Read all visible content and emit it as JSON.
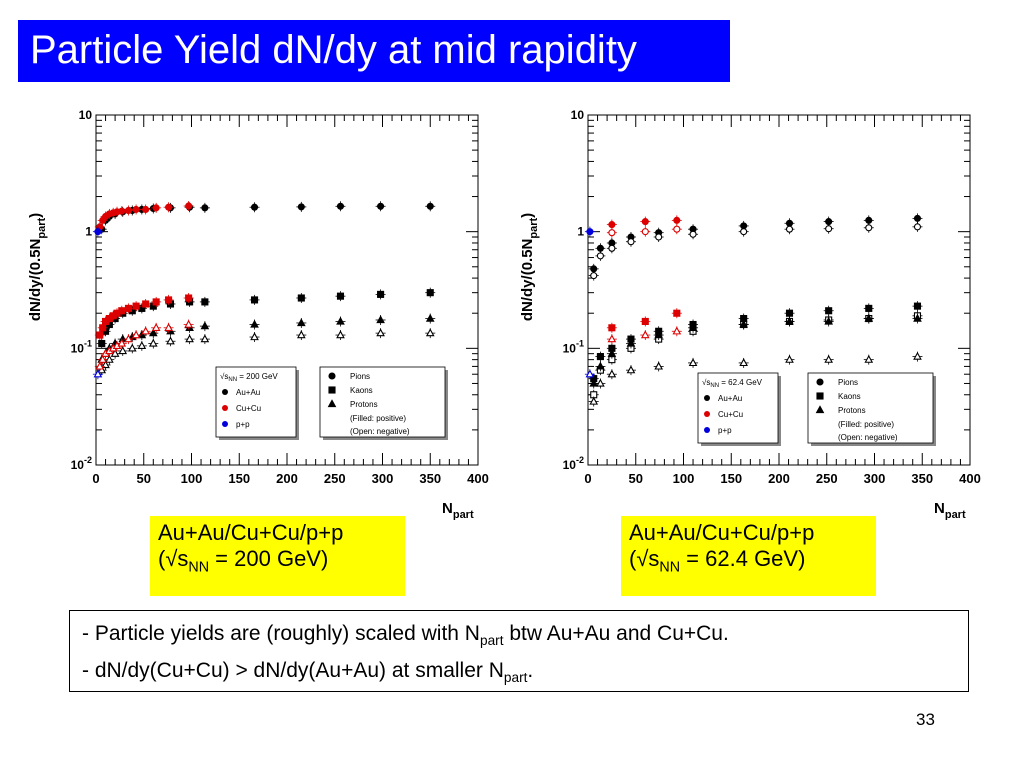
{
  "slide": {
    "title": "Particle Yield dN/dy at mid rapidity",
    "page_number": "33"
  },
  "captions": [
    {
      "line1": "Au+Au/Cu+Cu/p+p",
      "line2_pre": "(√s",
      "line2_sub": "NN",
      "line2_post": " = 200 GeV)"
    },
    {
      "line1": "Au+Au/Cu+Cu/p+p",
      "line2_pre": "(√s",
      "line2_sub": "NN",
      "line2_post": " = 62.4 GeV)"
    }
  ],
  "notes": {
    "line1_pre": "- Particle yields are (roughly) scaled with N",
    "line1_sub": "part",
    "line1_post": " btw Au+Au and Cu+Cu.",
    "line2_pre": "- dN/dy(Cu+Cu) > dN/dy(Au+Au) at smaller N",
    "line2_sub": "part",
    "line2_post": "."
  },
  "legend_common": {
    "au_label": "Au+Au",
    "cu_label": "Cu+Cu",
    "pp_label": "p+p",
    "pions": "Pions",
    "kaons": "Kaons",
    "protons": "Protons",
    "filled": "(Filled: positive)",
    "open": "(Open: negative)"
  },
  "colors": {
    "au": "#000000",
    "cu": "#dd0000",
    "pp": "#0000dd",
    "title_bg": "#0000ff",
    "caption_bg": "#ffff00"
  },
  "chart_data": [
    {
      "type": "scatter",
      "energy_label": "= 200 GeV",
      "xlabel_main": "N",
      "xlabel_sub": "part",
      "ylabel_main": "dN/dy/(0.5N",
      "ylabel_sub": "part",
      "ylabel_end": ")",
      "xlim": [
        0,
        400
      ],
      "ylim": [
        0.01,
        10
      ],
      "yscale": "log",
      "x_ticks": [
        "0",
        "50",
        "100",
        "150",
        "200",
        "250",
        "300",
        "350",
        "400"
      ],
      "y_ticks": [
        {
          "base": "10",
          "exp": "-2"
        },
        {
          "base": "10",
          "exp": "-1"
        },
        {
          "base": "1",
          "exp": ""
        },
        {
          "base": "10",
          "exp": ""
        }
      ],
      "series": [
        {
          "name": "Pions",
          "system": "Au+Au",
          "filled": true,
          "marker": "circle",
          "x": [
            6,
            10,
            14,
            20,
            28,
            38,
            48,
            60,
            78,
            98,
            114,
            166,
            215,
            256,
            298,
            350
          ],
          "y": [
            1.05,
            1.25,
            1.35,
            1.42,
            1.48,
            1.52,
            1.55,
            1.58,
            1.6,
            1.62,
            1.6,
            1.62,
            1.63,
            1.65,
            1.65,
            1.65
          ]
        },
        {
          "name": "Pions",
          "system": "Cu+Cu",
          "filled": true,
          "marker": "circle",
          "x": [
            4,
            7,
            10,
            14,
            18,
            22,
            27,
            34,
            42,
            52,
            63,
            76,
            97
          ],
          "y": [
            1.1,
            1.25,
            1.35,
            1.42,
            1.45,
            1.48,
            1.5,
            1.52,
            1.55,
            1.55,
            1.6,
            1.62,
            1.66
          ]
        },
        {
          "name": "Pions",
          "system": "p+p",
          "filled": true,
          "marker": "circle",
          "x": [
            2
          ],
          "y": [
            1.0
          ]
        },
        {
          "name": "Kaons",
          "system": "Au+Au",
          "filled": true,
          "marker": "square",
          "x": [
            6,
            10,
            14,
            20,
            28,
            38,
            48,
            60,
            78,
            98,
            114,
            166,
            215,
            256,
            298,
            350
          ],
          "y": [
            0.11,
            0.14,
            0.16,
            0.18,
            0.2,
            0.21,
            0.22,
            0.23,
            0.24,
            0.25,
            0.25,
            0.26,
            0.27,
            0.28,
            0.29,
            0.3
          ]
        },
        {
          "name": "Kaons",
          "system": "Cu+Cu",
          "filled": true,
          "marker": "square",
          "x": [
            4,
            7,
            10,
            14,
            18,
            22,
            27,
            34,
            42,
            52,
            63,
            76,
            97
          ],
          "y": [
            0.13,
            0.15,
            0.17,
            0.18,
            0.19,
            0.2,
            0.21,
            0.22,
            0.23,
            0.24,
            0.25,
            0.26,
            0.27
          ]
        },
        {
          "name": "Protons",
          "system": "Au+Au",
          "filled": true,
          "marker": "triangle",
          "x": [
            6,
            10,
            14,
            20,
            28,
            38,
            48,
            60,
            78,
            98,
            114,
            166,
            215,
            256,
            298,
            350
          ],
          "y": [
            0.08,
            0.09,
            0.1,
            0.11,
            0.12,
            0.125,
            0.13,
            0.135,
            0.14,
            0.15,
            0.155,
            0.16,
            0.165,
            0.17,
            0.175,
            0.18
          ]
        },
        {
          "name": "Protons",
          "system": "Au+Au",
          "filled": false,
          "marker": "triangle",
          "x": [
            6,
            10,
            14,
            20,
            28,
            38,
            48,
            60,
            78,
            98,
            114,
            166,
            215,
            256,
            298,
            350
          ],
          "y": [
            0.065,
            0.072,
            0.08,
            0.09,
            0.095,
            0.1,
            0.105,
            0.11,
            0.115,
            0.12,
            0.12,
            0.125,
            0.13,
            0.13,
            0.135,
            0.135
          ]
        },
        {
          "name": "Protons",
          "system": "Cu+Cu",
          "filled": false,
          "marker": "triangle",
          "x": [
            4,
            7,
            10,
            14,
            18,
            22,
            27,
            34,
            42,
            52,
            63,
            76,
            97
          ],
          "y": [
            0.07,
            0.08,
            0.09,
            0.095,
            0.1,
            0.105,
            0.11,
            0.12,
            0.13,
            0.14,
            0.15,
            0.15,
            0.16
          ]
        },
        {
          "name": "Protons",
          "system": "p+p",
          "filled": false,
          "marker": "triangle",
          "x": [
            2
          ],
          "y": [
            0.06
          ]
        }
      ]
    },
    {
      "type": "scatter",
      "energy_label": "= 62.4 GeV",
      "xlabel_main": "N",
      "xlabel_sub": "part",
      "ylabel_main": "dN/dy/(0.5N",
      "ylabel_sub": "part",
      "ylabel_end": ")",
      "xlim": [
        0,
        400
      ],
      "ylim": [
        0.01,
        10
      ],
      "yscale": "log",
      "x_ticks": [
        "0",
        "50",
        "100",
        "150",
        "200",
        "250",
        "300",
        "350",
        "400"
      ],
      "y_ticks": [
        {
          "base": "10",
          "exp": "-2"
        },
        {
          "base": "10",
          "exp": "-1"
        },
        {
          "base": "1",
          "exp": ""
        },
        {
          "base": "10",
          "exp": ""
        }
      ],
      "series": [
        {
          "name": "Pions",
          "system": "Au+Au",
          "filled": true,
          "marker": "circle",
          "x": [
            6,
            13,
            25,
            45,
            74,
            110,
            163,
            211,
            252,
            294,
            345
          ],
          "y": [
            0.48,
            0.72,
            0.8,
            0.9,
            0.98,
            1.05,
            1.12,
            1.18,
            1.22,
            1.25,
            1.3
          ]
        },
        {
          "name": "Pions",
          "system": "Au+Au",
          "filled": false,
          "marker": "circle",
          "x": [
            6,
            13,
            25,
            45,
            74,
            110,
            163,
            211,
            252,
            294,
            345
          ],
          "y": [
            0.42,
            0.62,
            0.72,
            0.82,
            0.9,
            0.95,
            1.0,
            1.05,
            1.06,
            1.08,
            1.1
          ]
        },
        {
          "name": "Pions",
          "system": "Cu+Cu",
          "filled": true,
          "marker": "circle",
          "x": [
            25,
            60,
            93
          ],
          "y": [
            1.15,
            1.22,
            1.25
          ]
        },
        {
          "name": "Pions",
          "system": "Cu+Cu",
          "filled": false,
          "marker": "circle",
          "x": [
            25,
            60,
            93
          ],
          "y": [
            0.98,
            1.0,
            1.05
          ]
        },
        {
          "name": "Pions",
          "system": "p+p",
          "filled": true,
          "marker": "circle",
          "x": [
            2
          ],
          "y": [
            1.0
          ]
        },
        {
          "name": "Kaons",
          "system": "Au+Au",
          "filled": true,
          "marker": "square",
          "x": [
            6,
            13,
            25,
            45,
            74,
            110,
            163,
            211,
            252,
            294,
            345
          ],
          "y": [
            0.055,
            0.085,
            0.1,
            0.12,
            0.14,
            0.16,
            0.18,
            0.2,
            0.21,
            0.22,
            0.23
          ]
        },
        {
          "name": "Kaons",
          "system": "Au+Au",
          "filled": false,
          "marker": "square",
          "x": [
            6,
            13,
            25,
            45,
            74,
            110,
            163,
            211,
            252,
            294,
            345
          ],
          "y": [
            0.04,
            0.065,
            0.08,
            0.1,
            0.12,
            0.14,
            0.16,
            0.17,
            0.175,
            0.18,
            0.19
          ]
        },
        {
          "name": "Kaons",
          "system": "Cu+Cu",
          "filled": true,
          "marker": "square",
          "x": [
            25,
            60,
            93
          ],
          "y": [
            0.15,
            0.17,
            0.2
          ]
        },
        {
          "name": "Protons",
          "system": "Au+Au",
          "filled": true,
          "marker": "triangle",
          "x": [
            6,
            13,
            25,
            45,
            74,
            110,
            163,
            211,
            252,
            294,
            345
          ],
          "y": [
            0.05,
            0.07,
            0.09,
            0.11,
            0.13,
            0.15,
            0.16,
            0.17,
            0.17,
            0.18,
            0.18
          ]
        },
        {
          "name": "Protons",
          "system": "Au+Au",
          "filled": false,
          "marker": "triangle",
          "x": [
            6,
            13,
            25,
            45,
            74,
            110,
            163,
            211,
            252,
            294,
            345
          ],
          "y": [
            0.035,
            0.05,
            0.06,
            0.065,
            0.07,
            0.075,
            0.075,
            0.08,
            0.08,
            0.08,
            0.085
          ]
        },
        {
          "name": "Protons",
          "system": "Cu+Cu",
          "filled": false,
          "marker": "triangle",
          "x": [
            25,
            60,
            93
          ],
          "y": [
            0.12,
            0.13,
            0.14
          ]
        },
        {
          "name": "Protons",
          "system": "p+p",
          "filled": false,
          "marker": "triangle",
          "x": [
            2
          ],
          "y": [
            0.06
          ]
        }
      ]
    }
  ]
}
